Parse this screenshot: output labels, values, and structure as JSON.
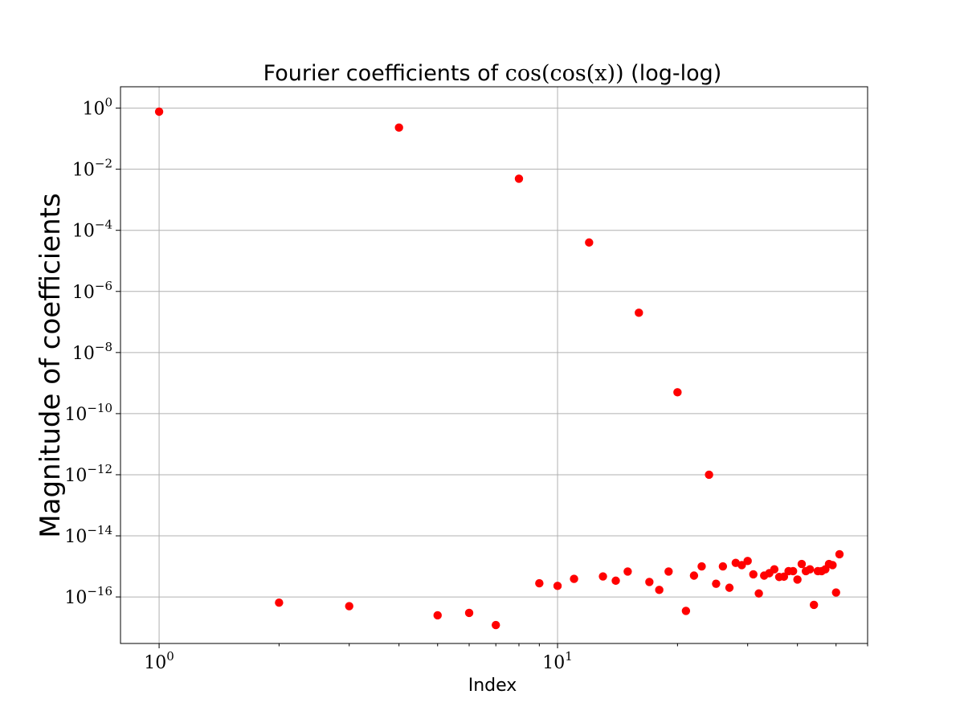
{
  "chart_data": {
    "type": "scatter",
    "title_prefix": "Fourier coefficients of ",
    "title_math": "cos(cos(x))",
    "title_suffix": " (log-log)",
    "xlabel": "Index",
    "ylabel": "Magnitude of coefficients",
    "xscale": "log",
    "yscale": "log",
    "xlim": [
      0.8,
      60
    ],
    "ylim": [
      3e-18,
      5
    ],
    "grid": true,
    "marker_color": "#ff0000",
    "x_ticks": [
      {
        "base": "10",
        "exp": "0",
        "value": 1
      },
      {
        "base": "10",
        "exp": "1",
        "value": 10
      }
    ],
    "y_ticks": [
      {
        "base": "10",
        "exp": "0",
        "value": 1
      },
      {
        "base": "10",
        "exp": "−2",
        "value": 0.01
      },
      {
        "base": "10",
        "exp": "−4",
        "value": 0.0001
      },
      {
        "base": "10",
        "exp": "−6",
        "value": 1e-06
      },
      {
        "base": "10",
        "exp": "−8",
        "value": 1e-08
      },
      {
        "base": "10",
        "exp": "−10",
        "value": 1e-10
      },
      {
        "base": "10",
        "exp": "−12",
        "value": 1e-12
      },
      {
        "base": "10",
        "exp": "−14",
        "value": 1e-14
      },
      {
        "base": "10",
        "exp": "−16",
        "value": 1e-16
      }
    ],
    "series": [
      {
        "x": [
          1,
          2,
          3,
          4,
          5,
          6,
          7,
          8,
          9,
          10,
          11,
          12,
          13,
          14,
          15,
          16,
          17,
          18,
          19,
          20,
          21,
          22,
          23,
          24,
          25,
          26,
          27,
          28,
          29,
          30,
          31,
          32,
          33,
          34,
          35,
          36,
          37,
          38,
          39,
          40,
          41,
          42,
          43,
          44,
          45,
          46,
          47,
          48,
          49,
          50,
          51
        ],
        "y": [
          0.765,
          6.5e-17,
          5e-17,
          0.23,
          2.5e-17,
          3e-17,
          1.2e-17,
          0.0049,
          2.8e-16,
          2.3e-16,
          3.9e-16,
          3.99e-05,
          4.7e-16,
          3.4e-16,
          6.8e-16,
          2e-07,
          3.1e-16,
          1.7e-16,
          6.8e-16,
          5e-10,
          3.5e-17,
          5e-16,
          1e-15,
          1e-12,
          2.7e-16,
          1e-15,
          2e-16,
          1.3e-15,
          1.1e-15,
          1.5e-15,
          5.5e-16,
          1.3e-16,
          5e-16,
          6e-16,
          8e-16,
          4.5e-16,
          4.6e-16,
          7e-16,
          7e-16,
          3.7e-16,
          1.2e-15,
          7e-16,
          8e-16,
          5.5e-17,
          7e-16,
          7e-16,
          8e-16,
          1.2e-15,
          1.1e-15,
          1.4e-16,
          2.5e-15
        ]
      }
    ]
  }
}
